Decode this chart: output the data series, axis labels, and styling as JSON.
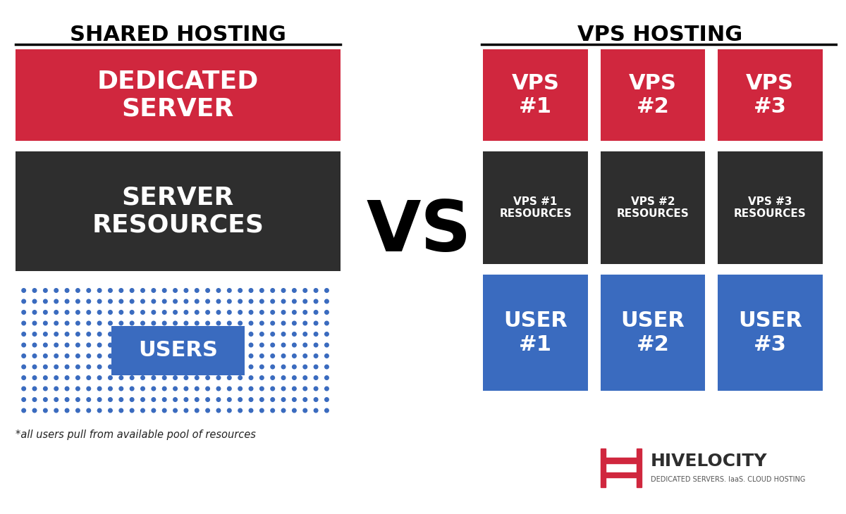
{
  "bg_color": "#ffffff",
  "red_color": "#d0273e",
  "dark_color": "#2e2e2e",
  "blue_color": "#3a6bbf",
  "white_color": "#ffffff",
  "shared_title": "SHARED HOSTING",
  "vps_title": "VPS HOSTING",
  "vs_text": "VS",
  "dedicated_server_text": "DEDICATED\nSERVER",
  "server_resources_text": "SERVER\nRESOURCES",
  "users_text": "USERS",
  "footnote": "*all users pull from available pool of resources",
  "vps_labels": [
    "VPS\n#1",
    "VPS\n#2",
    "VPS\n#3"
  ],
  "vps_resources_labels": [
    "VPS #1\nRESOURCES",
    "VPS #2\nRESOURCES",
    "VPS #3\nRESOURCES"
  ],
  "user_labels": [
    "USER\n#1",
    "USER\n#2",
    "USER\n#3"
  ],
  "hivelocity_text": "HIVELOCITY",
  "hivelocity_sub": "DEDICATED SERVERS. IaaS. CLOUD HOSTING"
}
